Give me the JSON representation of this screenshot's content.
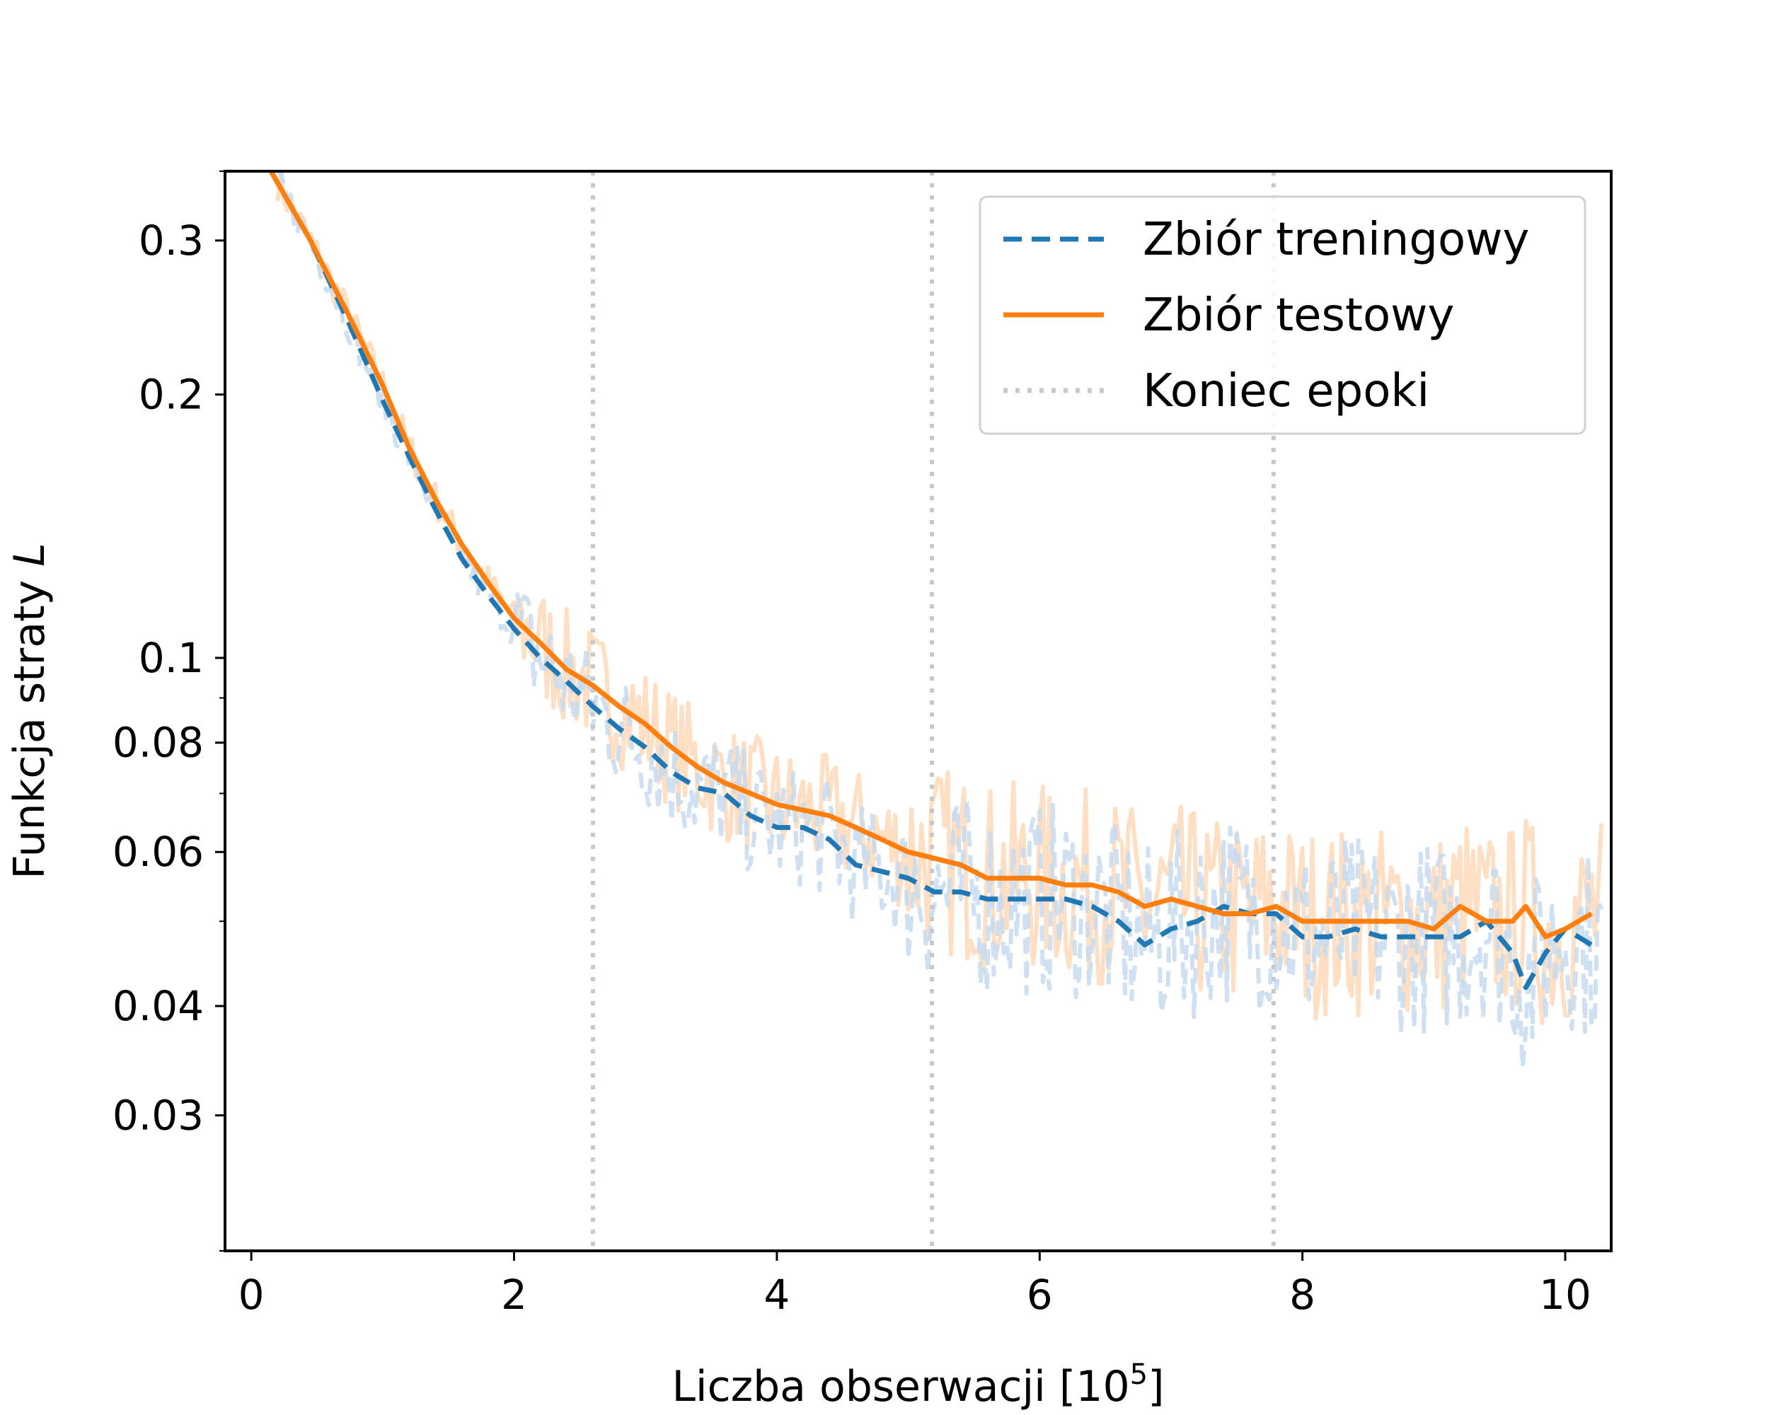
{
  "chart_data": {
    "type": "line",
    "xlabel": "Liczba obserwacji [10",
    "xlabel_sup": "5",
    "xlabel_close": "]",
    "ylabel": "Funkcja straty ",
    "ylabel_var": "L",
    "yscale": "log",
    "xlim": [
      -0.2,
      10.35
    ],
    "ylim": [
      0.021,
      0.36
    ],
    "x_ticks": [
      0,
      2,
      4,
      6,
      8,
      10
    ],
    "x_tick_labels": [
      "0",
      "2",
      "4",
      "6",
      "8",
      "10"
    ],
    "y_ticks": [
      0.03,
      0.04,
      0.06,
      0.08,
      0.1,
      0.2,
      0.3
    ],
    "y_tick_labels": [
      "0.03",
      "0.04",
      "0.06",
      "0.08",
      "0.1",
      "0.2",
      "0.3"
    ],
    "y_minor_ticks": [
      0.05,
      0.07,
      0.09
    ],
    "epoch_ends": [
      2.6,
      5.18,
      7.78
    ],
    "legend": {
      "position": "upper right",
      "entries": [
        {
          "label": "Zbiór treningowy",
          "style": "dashed",
          "color": "#1f77b4"
        },
        {
          "label": "Zbiór testowy",
          "style": "solid",
          "color": "#ff7f0e"
        },
        {
          "label": "Koniec epoki",
          "style": "dotted",
          "color": "#c8c8c8"
        }
      ]
    },
    "series": [
      {
        "name": "Zbiór treningowy",
        "color": "#1f77b4",
        "style": "dashed",
        "x": [
          0.15,
          0.45,
          0.75,
          1.0,
          1.2,
          1.4,
          1.6,
          1.8,
          2.0,
          2.2,
          2.4,
          2.6,
          2.8,
          3.0,
          3.2,
          3.4,
          3.6,
          3.8,
          4.0,
          4.2,
          4.4,
          4.6,
          4.8,
          5.0,
          5.2,
          5.4,
          5.6,
          5.8,
          6.0,
          6.2,
          6.4,
          6.6,
          6.8,
          7.0,
          7.2,
          7.4,
          7.6,
          7.8,
          8.0,
          8.2,
          8.4,
          8.6,
          8.8,
          9.0,
          9.2,
          9.4,
          9.6,
          9.7,
          9.85,
          10.0,
          10.2
        ],
        "y": [
          0.36,
          0.3,
          0.24,
          0.197,
          0.17,
          0.148,
          0.13,
          0.118,
          0.108,
          0.1,
          0.094,
          0.088,
          0.083,
          0.079,
          0.074,
          0.071,
          0.07,
          0.066,
          0.064,
          0.064,
          0.062,
          0.058,
          0.057,
          0.056,
          0.054,
          0.054,
          0.053,
          0.053,
          0.053,
          0.053,
          0.052,
          0.05,
          0.047,
          0.049,
          0.05,
          0.052,
          0.051,
          0.051,
          0.048,
          0.048,
          0.049,
          0.048,
          0.048,
          0.048,
          0.048,
          0.05,
          0.046,
          0.042,
          0.046,
          0.049,
          0.047
        ]
      },
      {
        "name": "Zbiór testowy",
        "color": "#ff7f0e",
        "style": "solid",
        "x": [
          0.15,
          0.45,
          0.75,
          1.0,
          1.2,
          1.4,
          1.6,
          1.8,
          2.0,
          2.2,
          2.4,
          2.6,
          2.8,
          3.0,
          3.2,
          3.4,
          3.6,
          3.8,
          4.0,
          4.2,
          4.4,
          4.6,
          4.8,
          5.0,
          5.2,
          5.4,
          5.6,
          5.8,
          6.0,
          6.2,
          6.4,
          6.6,
          6.8,
          7.0,
          7.2,
          7.4,
          7.6,
          7.8,
          8.0,
          8.2,
          8.4,
          8.6,
          8.8,
          9.0,
          9.2,
          9.4,
          9.6,
          9.7,
          9.85,
          10.0,
          10.2
        ],
        "y": [
          0.36,
          0.3,
          0.245,
          0.205,
          0.174,
          0.152,
          0.135,
          0.122,
          0.111,
          0.104,
          0.097,
          0.093,
          0.088,
          0.084,
          0.079,
          0.075,
          0.072,
          0.07,
          0.068,
          0.067,
          0.066,
          0.064,
          0.062,
          0.06,
          0.059,
          0.058,
          0.056,
          0.056,
          0.056,
          0.055,
          0.055,
          0.054,
          0.052,
          0.053,
          0.052,
          0.051,
          0.051,
          0.052,
          0.05,
          0.05,
          0.05,
          0.05,
          0.05,
          0.049,
          0.052,
          0.05,
          0.05,
          0.052,
          0.048,
          0.049,
          0.051
        ]
      }
    ]
  }
}
